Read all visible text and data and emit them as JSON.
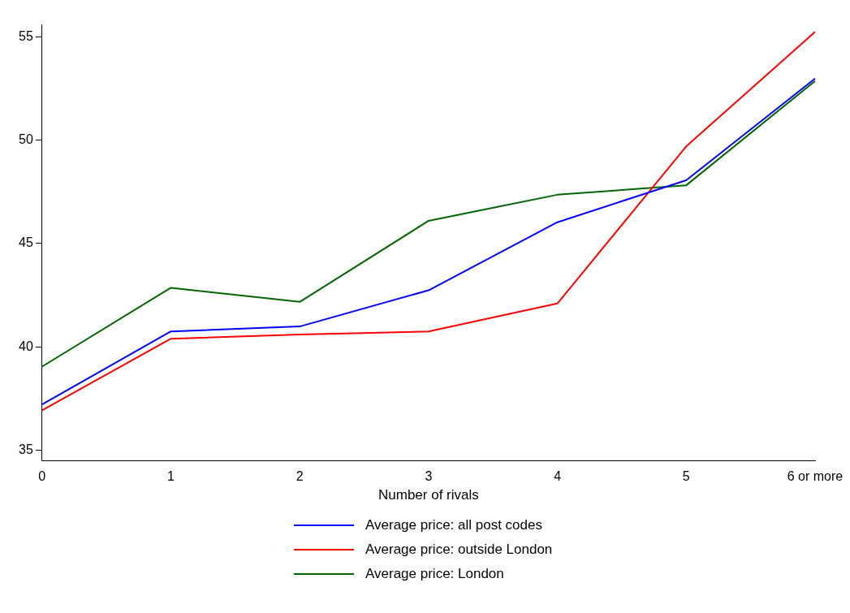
{
  "chart_data": {
    "type": "line",
    "xlabel": "Number of rivals",
    "categories": [
      "0",
      "1",
      "2",
      "3",
      "4",
      "5",
      "6 or more"
    ],
    "series": [
      {
        "name": "Average price: all post codes",
        "color": "#0000ff",
        "values": [
          37.22,
          40.75,
          40.99,
          42.74,
          46.03,
          48.06,
          52.98
        ]
      },
      {
        "name": "Average price: outside London",
        "color": "#ff0000",
        "values": [
          36.94,
          40.4,
          40.6,
          40.75,
          42.1,
          49.7,
          55.24
        ]
      },
      {
        "name": "Average price: London",
        "color": "#006400",
        "values": [
          39.05,
          42.86,
          42.18,
          46.1,
          47.36,
          47.82,
          52.86
        ]
      }
    ],
    "ylim": [
      34.5,
      55.6
    ],
    "yticks": [
      35,
      40,
      45,
      50,
      55
    ],
    "grid": false,
    "legend": "bottom",
    "marker": "none",
    "line_style": "solid"
  }
}
